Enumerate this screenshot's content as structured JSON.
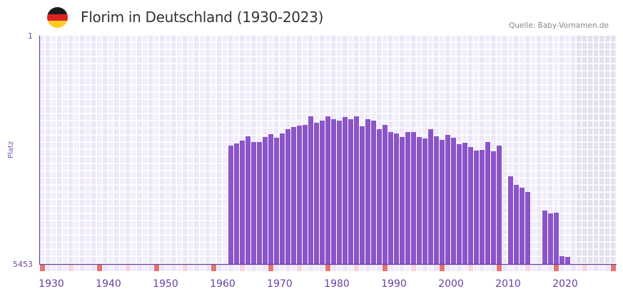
{
  "header": {
    "title": "Florim in Deutschland (1930-2023)",
    "source": "Quelle: Baby-Vornamen.de",
    "flag_colors": [
      "#1a1a1a",
      "#dd2222",
      "#ffcc22"
    ]
  },
  "colors": {
    "bar": "#8b55c8",
    "axis": "#6a3fa0",
    "grid_a": "#f2eefb",
    "grid_b": "#ece7f8",
    "future_shade": "#e4e0ed",
    "decade_marker": "#e57373",
    "half_marker": "#f5d6de"
  },
  "chart_data": {
    "type": "bar",
    "title": "Florim in Deutschland (1930-2023)",
    "xlabel": "",
    "ylabel": "Platz",
    "y_inverted": true,
    "ylim": [
      1,
      5453
    ],
    "y_ticks": [
      "1",
      "5453"
    ],
    "xlim": [
      1928,
      2028
    ],
    "x_ticks": [
      "1930",
      "1940",
      "1950",
      "1960",
      "1970",
      "1980",
      "1990",
      "2000",
      "2010",
      "2020"
    ],
    "shaded_from_year": 2022,
    "x": [
      1961,
      1962,
      1963,
      1964,
      1965,
      1966,
      1967,
      1968,
      1969,
      1970,
      1971,
      1972,
      1973,
      1974,
      1975,
      1976,
      1977,
      1978,
      1979,
      1980,
      1981,
      1982,
      1983,
      1984,
      1985,
      1986,
      1987,
      1988,
      1989,
      1990,
      1991,
      1992,
      1993,
      1994,
      1995,
      1996,
      1997,
      1998,
      1999,
      2000,
      2001,
      2002,
      2003,
      2004,
      2005,
      2006,
      2007,
      2008,
      2010,
      2011,
      2012,
      2013,
      2016,
      2017,
      2018,
      2019,
      2020
    ],
    "values": [
      2625,
      2574,
      2506,
      2404,
      2540,
      2540,
      2421,
      2353,
      2438,
      2336,
      2233,
      2182,
      2148,
      2131,
      1927,
      2080,
      2029,
      1927,
      1995,
      2029,
      1944,
      1995,
      1927,
      2165,
      1995,
      2029,
      2233,
      2131,
      2302,
      2336,
      2421,
      2302,
      2302,
      2421,
      2455,
      2233,
      2404,
      2489,
      2370,
      2438,
      2591,
      2557,
      2659,
      2744,
      2727,
      2540,
      2761,
      2625,
      3358,
      3562,
      3630,
      3733,
      4176,
      4244,
      4227,
      5266,
      5283
    ]
  }
}
